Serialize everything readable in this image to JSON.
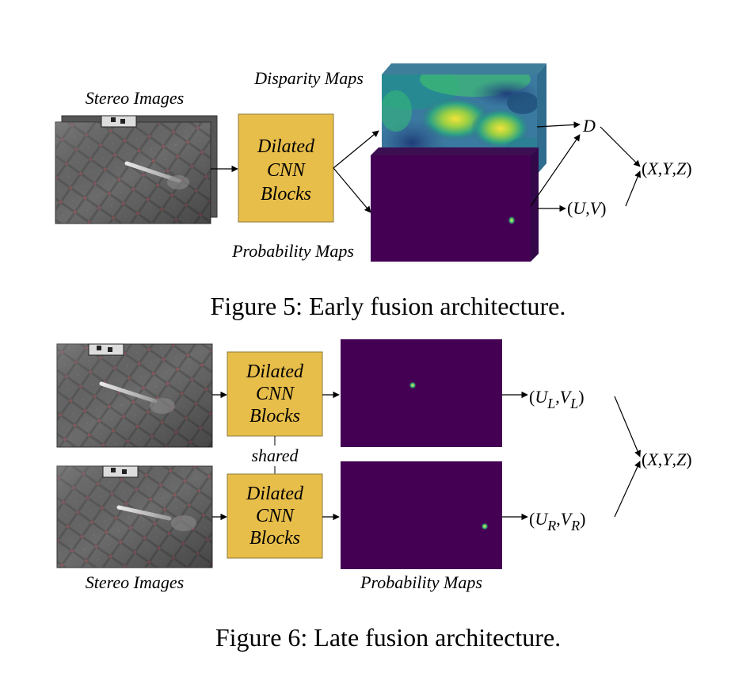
{
  "figure5": {
    "stereo_label": "Stereo Images",
    "block_lines": [
      "Dilated",
      "CNN",
      "Blocks"
    ],
    "disparity_label": "Disparity Maps",
    "probability_label": "Probability Maps",
    "out_d": "D",
    "out_uv": "(U,V)",
    "out_xyz": "(X,Y,Z)",
    "caption": "Figure 5: Early fusion architecture."
  },
  "figure6": {
    "block_lines": [
      "Dilated",
      "CNN",
      "Blocks"
    ],
    "shared_label": "shared",
    "stereo_label": "Stereo Images",
    "probability_label": "Probability Maps",
    "out_left": "(U_L, V_L)",
    "out_right": "(U_R, V_R)",
    "out_xyz": "(X,Y,Z)",
    "caption": "Figure 6: Late fusion architecture."
  },
  "colors": {
    "block_fill": "#E8BE4A",
    "block_stroke": "#8C7A3A",
    "probability_bg": "#440154",
    "photo_gray": "#6E6E6E"
  }
}
